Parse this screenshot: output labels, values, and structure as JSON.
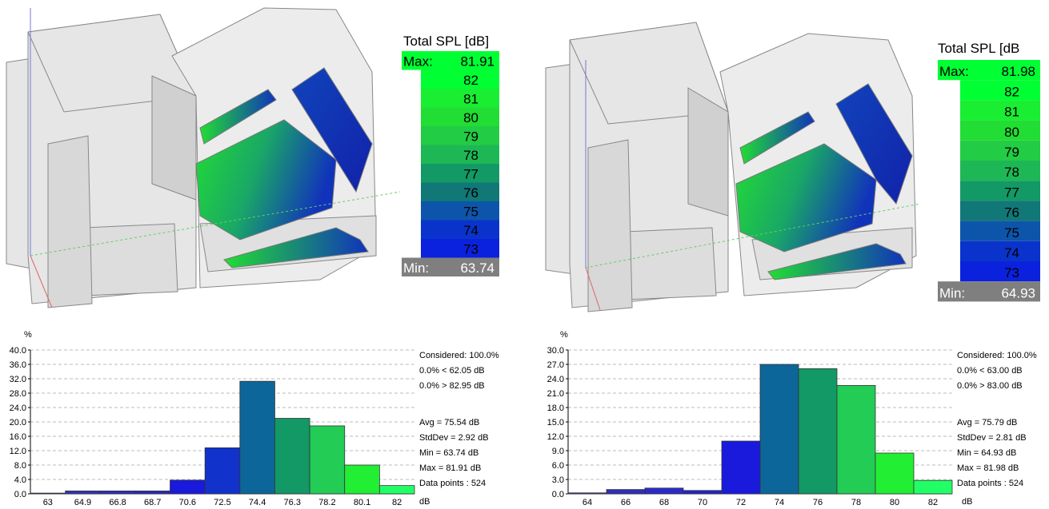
{
  "panels": [
    {
      "legend": {
        "title": "Total SPL [dB]",
        "max_label": "Max:",
        "max_value": "81.91",
        "levels": [
          {
            "label": "82",
            "color": "#00ff33"
          },
          {
            "label": "81",
            "color": "#1aee33"
          },
          {
            "label": "80",
            "color": "#22dd33"
          },
          {
            "label": "79",
            "color": "#22cc44"
          },
          {
            "label": "78",
            "color": "#1db855"
          },
          {
            "label": "77",
            "color": "#139966"
          },
          {
            "label": "76",
            "color": "#117777"
          },
          {
            "label": "75",
            "color": "#0d55aa"
          },
          {
            "label": "74",
            "color": "#0a33cc"
          },
          {
            "label": "73",
            "color": "#0a22dd"
          }
        ],
        "min_label": "Min:",
        "min_value": "63.74"
      },
      "stats": {
        "considered": "Considered: 100.0%",
        "below": "0.0%  < 62.05 dB",
        "above": "0.0%  > 82.95 dB",
        "avg": "Avg = 75.54 dB",
        "stddev": "StdDev = 2.92 dB",
        "min": "Min = 63.74 dB",
        "max": "Max = 81.91 dB",
        "points": "Data points : 524"
      }
    },
    {
      "legend": {
        "title": "Total SPL [dB",
        "max_label": "Max:",
        "max_value": "81.98",
        "levels": [
          {
            "label": "82",
            "color": "#00ff33"
          },
          {
            "label": "81",
            "color": "#1aee33"
          },
          {
            "label": "80",
            "color": "#22dd33"
          },
          {
            "label": "79",
            "color": "#22cc44"
          },
          {
            "label": "78",
            "color": "#1db855"
          },
          {
            "label": "77",
            "color": "#139966"
          },
          {
            "label": "76",
            "color": "#117777"
          },
          {
            "label": "75",
            "color": "#0d55aa"
          },
          {
            "label": "74",
            "color": "#0a33cc"
          },
          {
            "label": "73",
            "color": "#0a22dd"
          }
        ],
        "min_label": "Min:",
        "min_value": "64.93"
      },
      "stats": {
        "considered": "Considered: 100.0%",
        "below": "0.0%  < 63.00 dB",
        "above": "0.0%  > 83.00 dB",
        "avg": "Avg = 75.79 dB",
        "stddev": "StdDev = 2.81 dB",
        "min": "Min = 64.93 dB",
        "max": "Max = 81.98 dB",
        "points": "Data points : 524"
      }
    }
  ],
  "chart_data": [
    {
      "type": "bar",
      "ylabel": "%",
      "xlabel": "dB",
      "ylim": [
        0,
        40
      ],
      "yticks": [
        "0.0",
        "4.0",
        "8.0",
        "12.0",
        "16.0",
        "20.0",
        "24.0",
        "28.0",
        "32.0",
        "36.0",
        "40.0"
      ],
      "categories": [
        "63",
        "64.9",
        "66.8",
        "68.7",
        "70.6",
        "72.5",
        "74.4",
        "76.3",
        "78.2",
        "80.1",
        "82"
      ],
      "values": [
        0.2,
        0.8,
        0.8,
        0.8,
        3.8,
        12.8,
        31.3,
        21.0,
        18.9,
        8.0,
        2.3
      ],
      "colors": [
        "#3333cc",
        "#3333bb",
        "#2e2ebb",
        "#2a2abb",
        "#1a1add",
        "#1133cc",
        "#0d6699",
        "#129966",
        "#22cc55",
        "#22ee33",
        "#22ff66"
      ],
      "grid": true
    },
    {
      "type": "bar",
      "ylabel": "%",
      "xlabel": "dB",
      "ylim": [
        0,
        30
      ],
      "yticks": [
        "0.0",
        "3.0",
        "6.0",
        "9.0",
        "12.0",
        "15.0",
        "18.0",
        "21.0",
        "24.0",
        "27.0",
        "30.0"
      ],
      "categories": [
        "64",
        "66",
        "68",
        "70",
        "72",
        "74",
        "76",
        "78",
        "80",
        "82"
      ],
      "values": [
        0.2,
        0.9,
        1.2,
        0.7,
        11.0,
        27.0,
        26.1,
        22.6,
        8.5,
        2.8
      ],
      "colors": [
        "#3333bb",
        "#2e2ebb",
        "#2a2acc",
        "#2222cc",
        "#1a1add",
        "#0d6699",
        "#129966",
        "#22cc55",
        "#22ee33",
        "#22ff66"
      ],
      "grid": true
    }
  ]
}
